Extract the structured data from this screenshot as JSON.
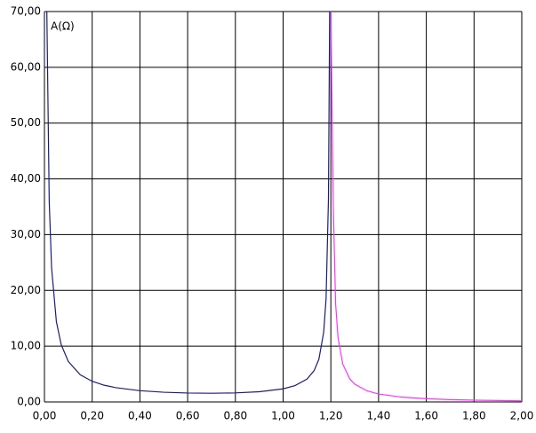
{
  "chart_data": {
    "type": "line",
    "y_label": "A(Ω)",
    "x": [
      0.01,
      0.02,
      0.03,
      0.05,
      0.07,
      0.1,
      0.15,
      0.2,
      0.25,
      0.3,
      0.4,
      0.5,
      0.6,
      0.7,
      0.8,
      0.9,
      1.0,
      1.05,
      1.1,
      1.13,
      1.15,
      1.17,
      1.18,
      1.19,
      1.195,
      1.2,
      1.21,
      1.22,
      1.23,
      1.25,
      1.28,
      1.3,
      1.35,
      1.4,
      1.5,
      1.6,
      1.7,
      1.8,
      1.9,
      2.0
    ],
    "series": [
      {
        "color": "#1c1c7e",
        "values": [
          70,
          36,
          24.0,
          14.4,
          10.3,
          7.25,
          4.86,
          3.7,
          3.0,
          2.56,
          2.02,
          1.74,
          1.6,
          1.56,
          1.62,
          1.83,
          2.35,
          2.93,
          4.09,
          5.62,
          7.67,
          12.5,
          18.5,
          36.4,
          70,
          null,
          null,
          null,
          null,
          null,
          null,
          null,
          null,
          null,
          null,
          null,
          null,
          null,
          null,
          null
        ]
      },
      {
        "color": "#ff33ff",
        "values": [
          null,
          null,
          null,
          null,
          null,
          null,
          null,
          null,
          null,
          null,
          null,
          null,
          null,
          null,
          null,
          null,
          null,
          null,
          null,
          null,
          null,
          null,
          null,
          null,
          null,
          70,
          35.6,
          17.6,
          11.6,
          6.77,
          4.08,
          3.19,
          2.01,
          1.42,
          0.85,
          0.58,
          0.42,
          0.32,
          0.25,
          0.2
        ]
      }
    ],
    "xlim": [
      0,
      2
    ],
    "ylim": [
      0,
      70
    ],
    "xticks": [
      {
        "value": 0,
        "label": "0,00"
      },
      {
        "value": 0.2,
        "label": "0,20"
      },
      {
        "value": 0.4,
        "label": "0,40"
      },
      {
        "value": 0.6,
        "label": "0,60"
      },
      {
        "value": 0.8,
        "label": "0,80"
      },
      {
        "value": 1.0,
        "label": "1,00"
      },
      {
        "value": 1.2,
        "label": "1,20"
      },
      {
        "value": 1.4,
        "label": "1,40"
      },
      {
        "value": 1.6,
        "label": "1,60"
      },
      {
        "value": 1.8,
        "label": "1,80"
      },
      {
        "value": 2.0,
        "label": "2,00"
      }
    ],
    "yticks": [
      {
        "value": 0,
        "label": "0,00"
      },
      {
        "value": 10,
        "label": "10,00"
      },
      {
        "value": 20,
        "label": "20,00"
      },
      {
        "value": 30,
        "label": "30,00"
      },
      {
        "value": 40,
        "label": "40,00"
      },
      {
        "value": 50,
        "label": "50,00"
      },
      {
        "value": 60,
        "label": "60,00"
      },
      {
        "value": 70,
        "label": "70,00"
      }
    ],
    "grid": true
  }
}
